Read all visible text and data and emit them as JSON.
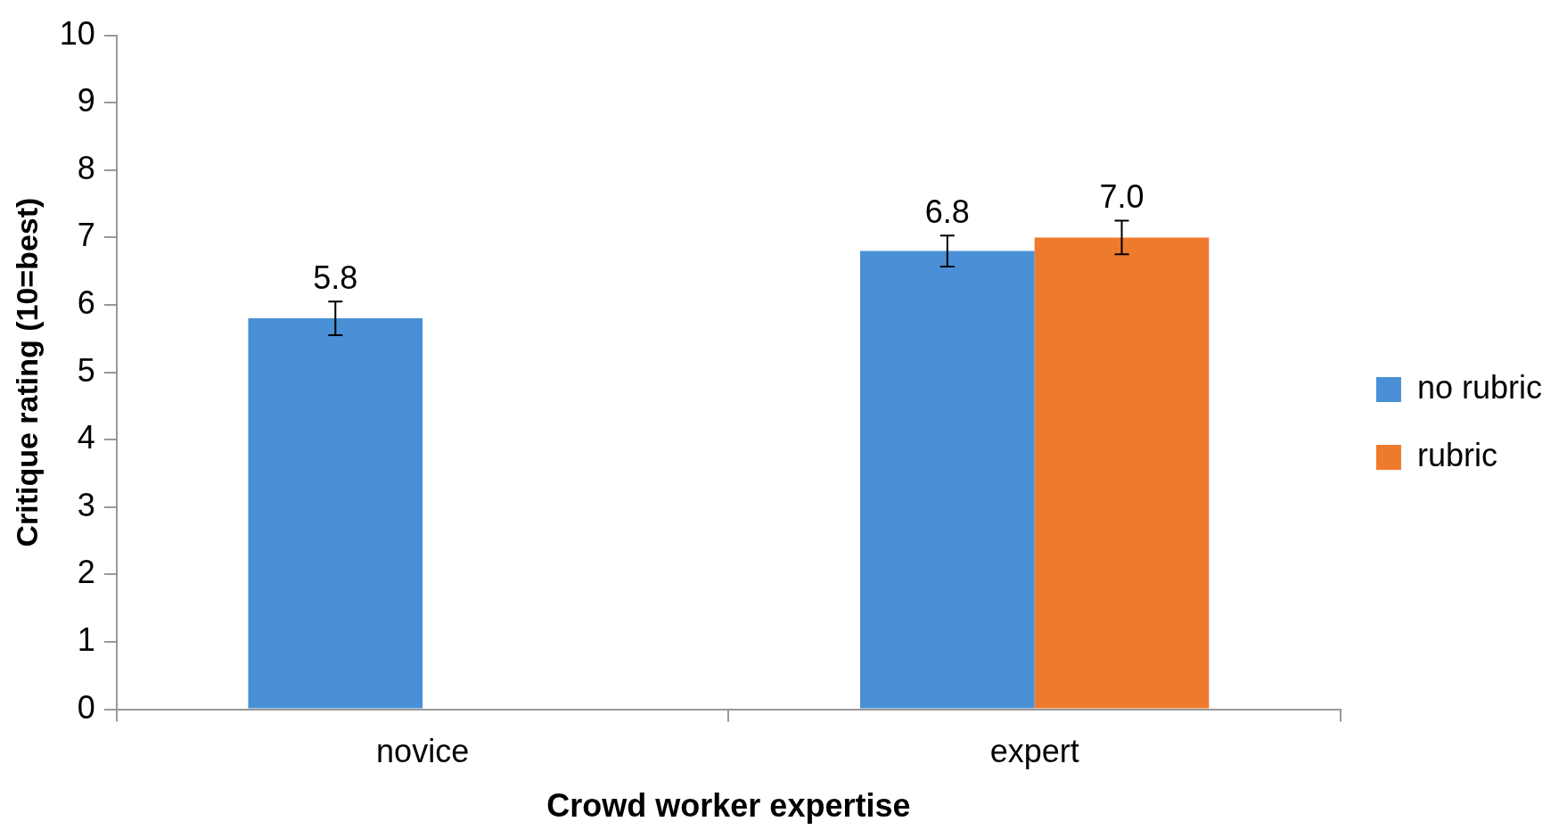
{
  "chart_data": {
    "type": "bar",
    "xlabel": "Crowd worker expertise",
    "ylabel": "Critique rating (10=best)",
    "categories": [
      "novice",
      "expert"
    ],
    "series": [
      {
        "name": "no rubric",
        "color": "#4a90d6",
        "values": [
          5.8,
          6.8
        ],
        "errors": [
          0.25,
          0.23
        ],
        "value_labels": [
          "5.8",
          "6.8"
        ]
      },
      {
        "name": "rubric",
        "color": "#ee7a2e",
        "values": [
          0,
          7.0
        ],
        "errors": [
          null,
          0.25
        ],
        "value_labels": [
          null,
          "7.0"
        ]
      }
    ],
    "ylim": [
      0,
      10
    ],
    "yticks": [
      0,
      1,
      2,
      3,
      4,
      5,
      6,
      7,
      8,
      9,
      10
    ],
    "grid": false,
    "legend": "right"
  }
}
